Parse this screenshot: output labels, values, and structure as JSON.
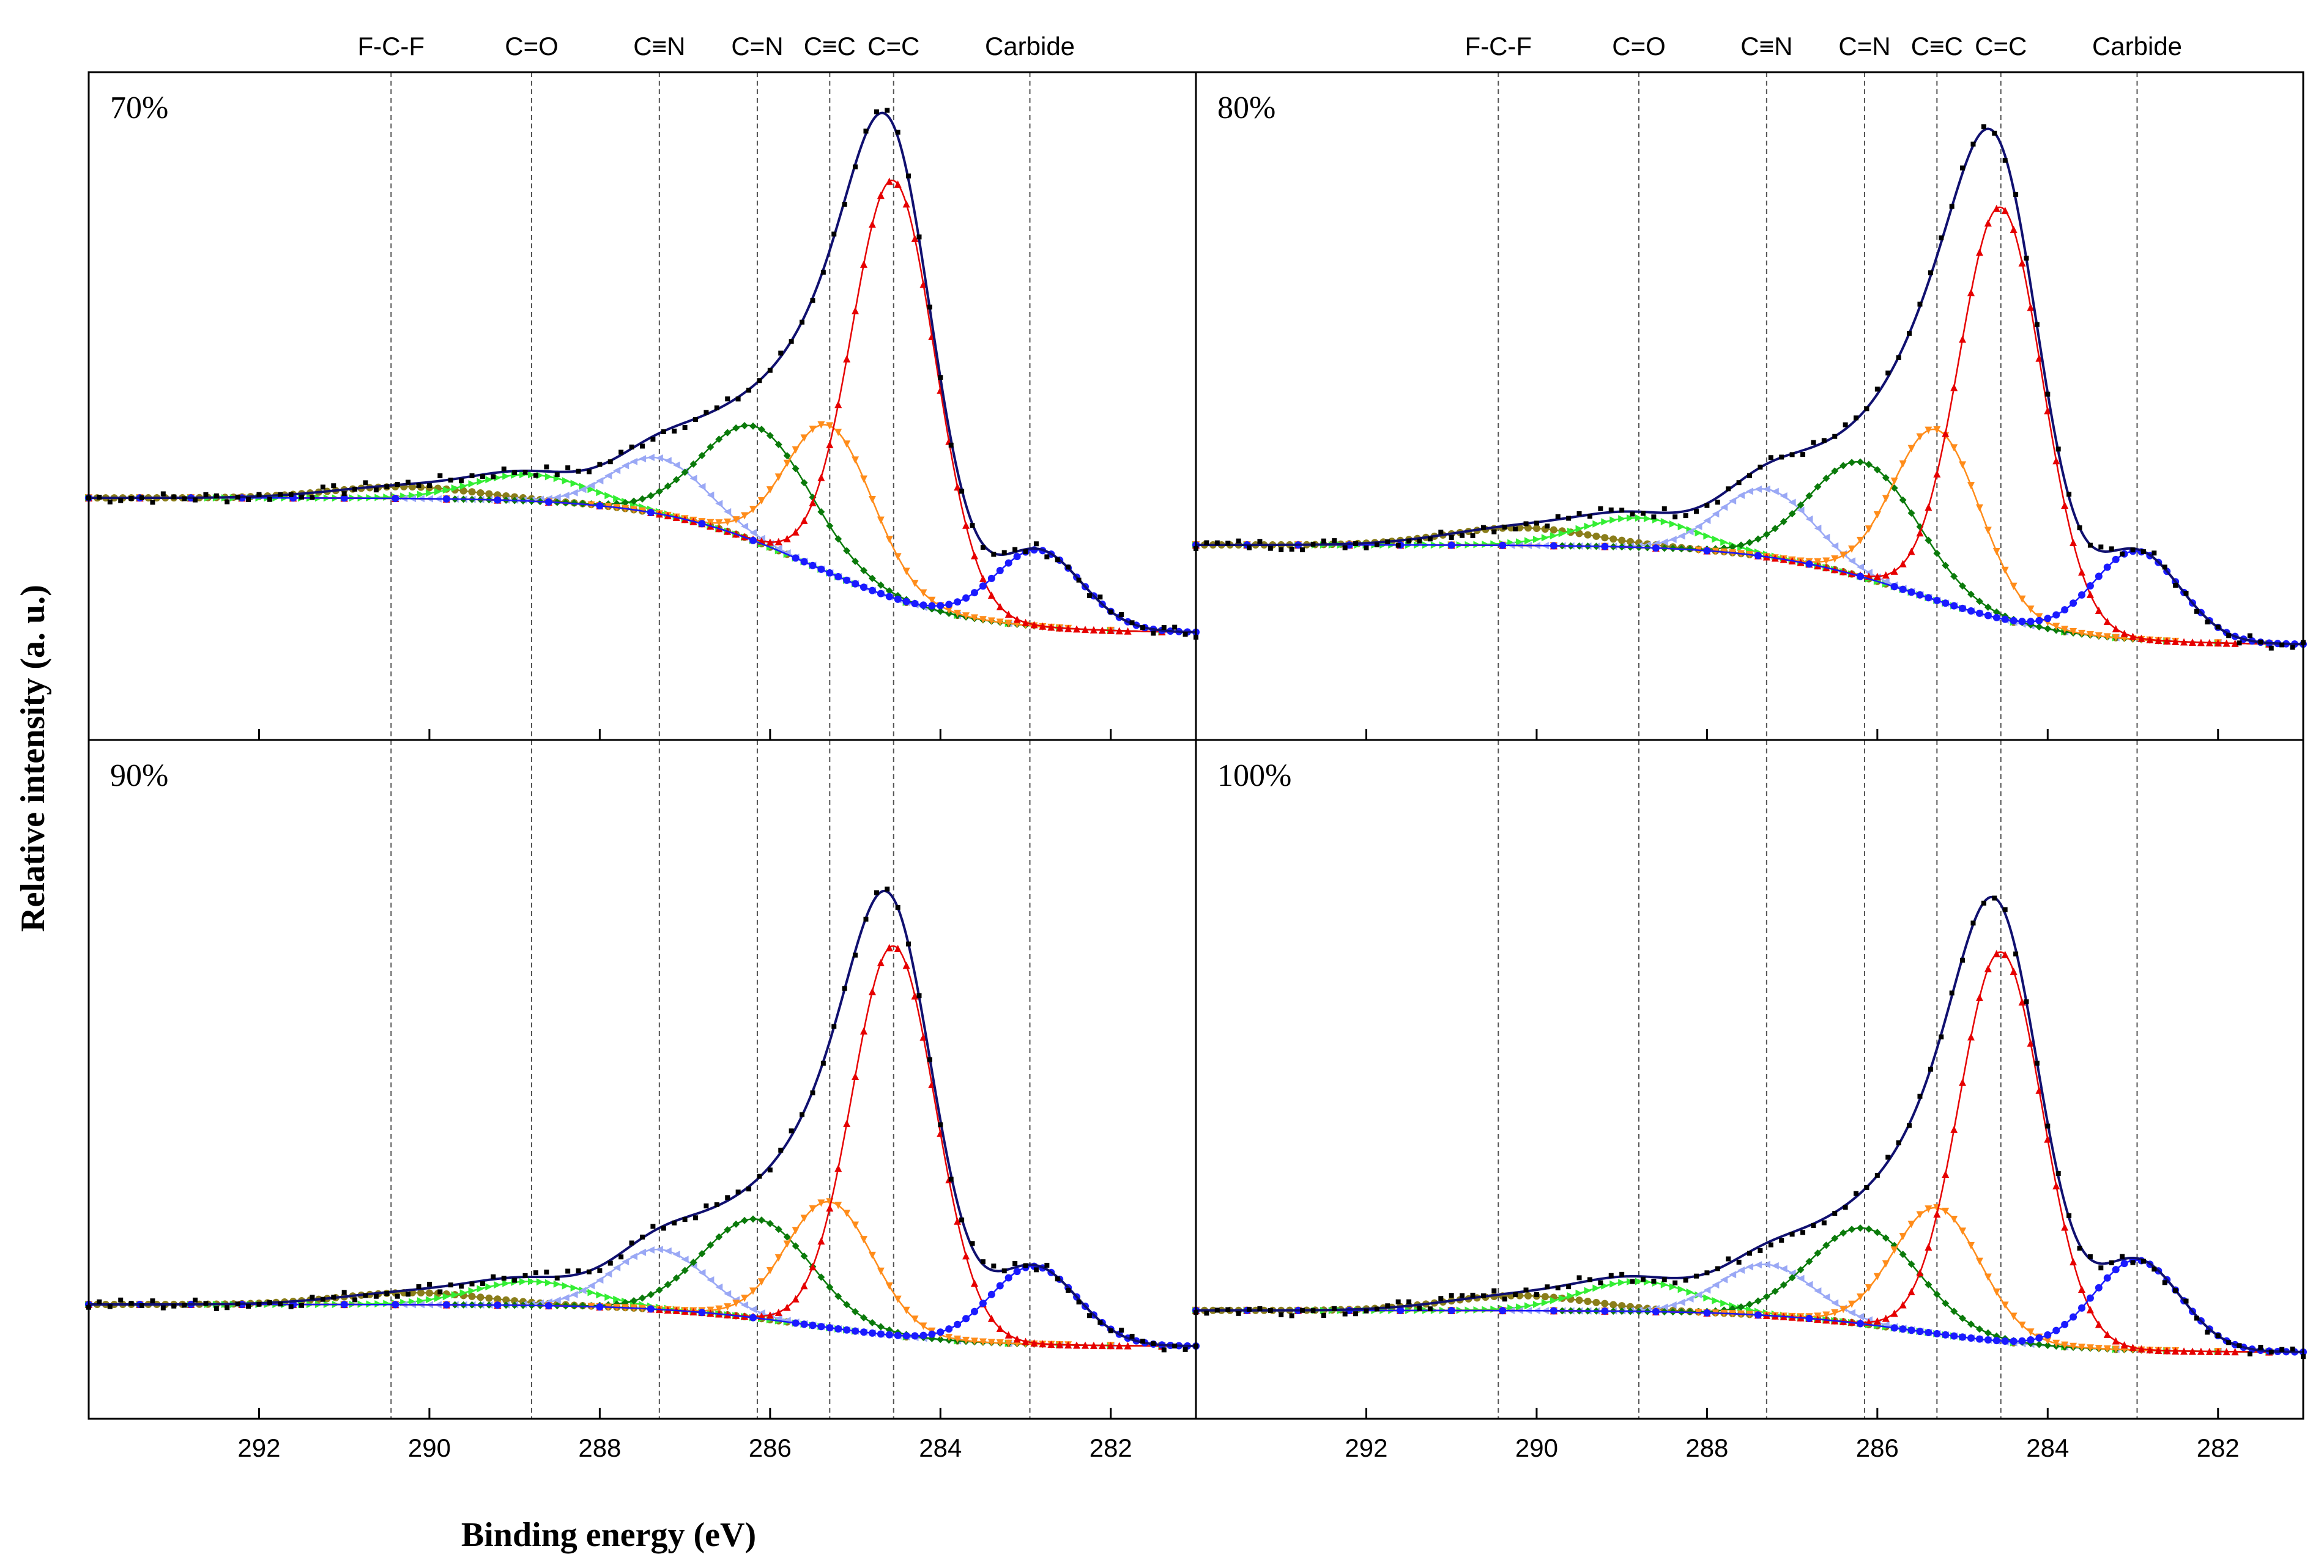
{
  "chart_data": {
    "type": "line",
    "title": "",
    "xlabel": "Binding energy (eV)",
    "ylabel": "Relative intensity (a. u.)",
    "xlim": [
      294,
      281
    ],
    "x_reversed": true,
    "x_ticks": [
      292,
      290,
      288,
      286,
      284,
      282
    ],
    "x_tick_labels": [
      "292",
      "290",
      "288",
      "286",
      "284",
      "282"
    ],
    "reference_lines": [
      {
        "label": "F-C-F",
        "x": 290.45
      },
      {
        "label": "C=O",
        "x": 288.8
      },
      {
        "label": "C≡N",
        "x": 287.3
      },
      {
        "label": "C=N",
        "x": 286.15
      },
      {
        "label": "C≡C",
        "x": 285.3
      },
      {
        "label": "C=C",
        "x": 284.55
      },
      {
        "label": "Carbide",
        "x": 282.95
      }
    ],
    "component_colors": {
      "F-C-F": "#8a7d1a",
      "C=O": "#33ee33",
      "C≡N": "#9aa8f5",
      "C=N": "#0a7a0a",
      "C≡C": "#ff8c1a",
      "C=C": "#e60000",
      "Carbide": "#1a1aff",
      "envelope": "#101070",
      "raw": "#000000"
    },
    "panels": [
      {
        "label": "70%",
        "baseline": {
          "left": 0.37,
          "right": 0.14
        },
        "components": [
          {
            "name": "F-C-F",
            "center": 290.3,
            "fwhm": 2.0,
            "height": 0.02
          },
          {
            "name": "C=O",
            "center": 288.8,
            "fwhm": 1.6,
            "height": 0.045
          },
          {
            "name": "C≡N",
            "center": 287.3,
            "fwhm": 1.3,
            "height": 0.095
          },
          {
            "name": "C=N",
            "center": 286.15,
            "fwhm": 1.5,
            "height": 0.195
          },
          {
            "name": "C≡C",
            "center": 285.3,
            "fwhm": 1.2,
            "height": 0.25
          },
          {
            "name": "C=C",
            "center": 284.55,
            "fwhm": 1.15,
            "height": 0.71
          },
          {
            "name": "Carbide",
            "center": 282.85,
            "fwhm": 1.2,
            "height": 0.13
          }
        ]
      },
      {
        "label": "80%",
        "baseline": {
          "left": 0.29,
          "right": 0.12
        },
        "components": [
          {
            "name": "F-C-F",
            "center": 290.2,
            "fwhm": 2.0,
            "height": 0.03
          },
          {
            "name": "C=O",
            "center": 288.8,
            "fwhm": 1.6,
            "height": 0.05
          },
          {
            "name": "C≡N",
            "center": 287.3,
            "fwhm": 1.3,
            "height": 0.115
          },
          {
            "name": "C=N",
            "center": 286.15,
            "fwhm": 1.5,
            "height": 0.195
          },
          {
            "name": "C≡C",
            "center": 285.3,
            "fwhm": 1.2,
            "height": 0.29
          },
          {
            "name": "C=C",
            "center": 284.55,
            "fwhm": 1.15,
            "height": 0.7
          },
          {
            "name": "Carbide",
            "center": 282.95,
            "fwhm": 1.2,
            "height": 0.15
          }
        ]
      },
      {
        "label": "90%",
        "baseline": {
          "left": 0.15,
          "right": 0.08
        },
        "components": [
          {
            "name": "F-C-F",
            "center": 290.2,
            "fwhm": 2.0,
            "height": 0.02
          },
          {
            "name": "C=O",
            "center": 288.8,
            "fwhm": 1.6,
            "height": 0.04
          },
          {
            "name": "C≡N",
            "center": 287.3,
            "fwhm": 1.3,
            "height": 0.1
          },
          {
            "name": "C=N",
            "center": 286.15,
            "fwhm": 1.5,
            "height": 0.165
          },
          {
            "name": "C≡C",
            "center": 285.3,
            "fwhm": 1.2,
            "height": 0.21
          },
          {
            "name": "C=C",
            "center": 284.55,
            "fwhm": 1.15,
            "height": 0.65
          },
          {
            "name": "Carbide",
            "center": 282.9,
            "fwhm": 1.2,
            "height": 0.13
          }
        ]
      },
      {
        "label": "100%",
        "baseline": {
          "left": 0.14,
          "right": 0.07
        },
        "components": [
          {
            "name": "F-C-F",
            "center": 290.2,
            "fwhm": 2.0,
            "height": 0.025
          },
          {
            "name": "C=O",
            "center": 288.8,
            "fwhm": 1.6,
            "height": 0.05
          },
          {
            "name": "C≡N",
            "center": 287.3,
            "fwhm": 1.3,
            "height": 0.085
          },
          {
            "name": "C=N",
            "center": 286.15,
            "fwhm": 1.5,
            "height": 0.16
          },
          {
            "name": "C≡C",
            "center": 285.3,
            "fwhm": 1.2,
            "height": 0.21
          },
          {
            "name": "C=C",
            "center": 284.55,
            "fwhm": 1.15,
            "height": 0.65
          },
          {
            "name": "Carbide",
            "center": 282.95,
            "fwhm": 1.2,
            "height": 0.15
          }
        ]
      }
    ]
  }
}
